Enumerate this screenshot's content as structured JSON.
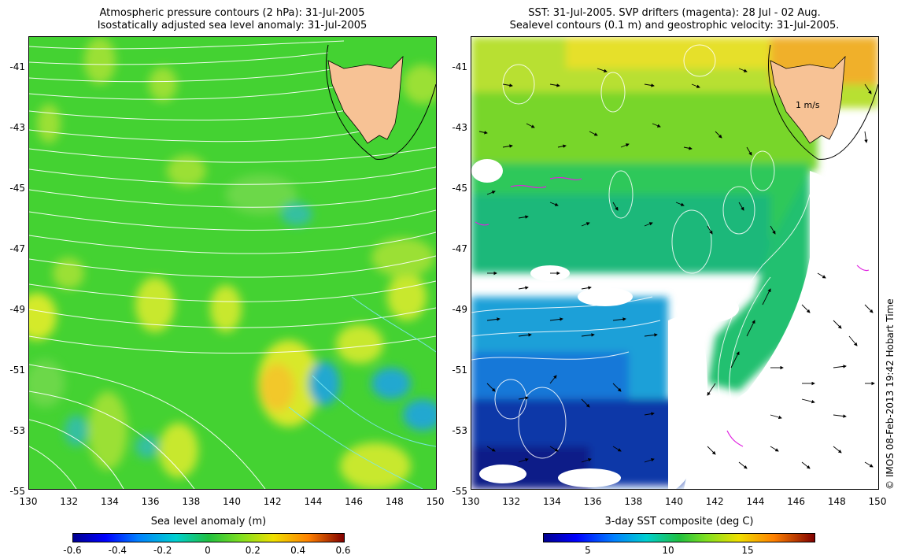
{
  "left_panel": {
    "title_line1": "Atmospheric pressure contours (2 hPa): 31-Jul-2005",
    "title_line2": "Isostatically adjusted sea level anomaly: 31-Jul-2005",
    "colorbar_label": "Sea level anomaly (m)",
    "colorbar_ticks": [
      "-0.6",
      "-0.4",
      "-0.2",
      "0",
      "0.2",
      "0.4",
      "0.6"
    ]
  },
  "right_panel": {
    "title_line1": "SST: 31-Jul-2005. SVP drifters (magenta): 28 Jul - 02 Aug.",
    "title_line2": "Sealevel contours (0.1 m) and geostrophic velocity: 31-Jul-2005.",
    "colorbar_label": "3-day SST composite (deg C)",
    "colorbar_ticks": [
      "5",
      "10",
      "15"
    ],
    "velocity_scale_label": "1 m/s"
  },
  "y_ticks": [
    "-41",
    "-43",
    "-45",
    "-47",
    "-49",
    "-51",
    "-53",
    "-55"
  ],
  "x_ticks": [
    "130",
    "132",
    "134",
    "136",
    "138",
    "140",
    "142",
    "144",
    "146",
    "148",
    "150"
  ],
  "credit": "© IMOS 08-Feb-2013 19:42 Hobart Time",
  "colors": {
    "land": "#f7c295",
    "sla_base": "#44d232",
    "contour_white": "#ffffff",
    "contour_cyan": "#7de8f0",
    "drifter": "#e020e0"
  }
}
